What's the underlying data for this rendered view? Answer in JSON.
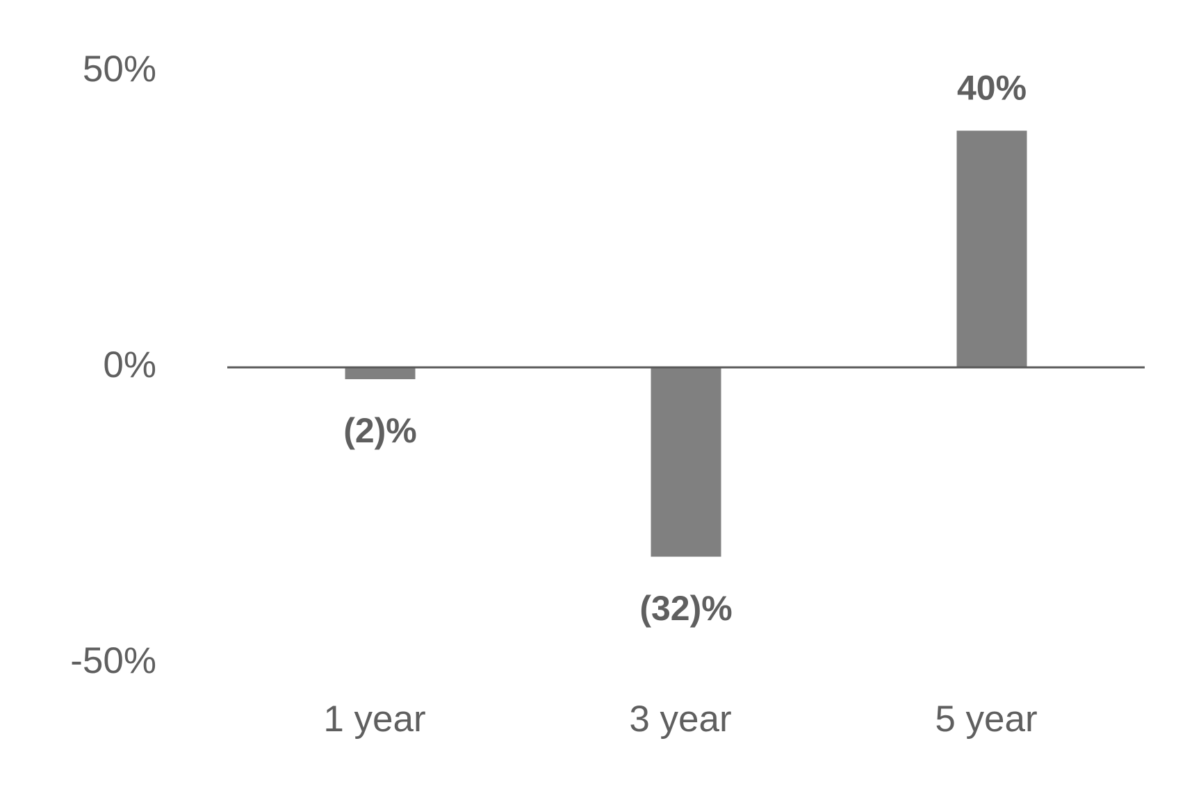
{
  "chart_data": {
    "type": "bar",
    "categories": [
      "1 year",
      "3 year",
      "5 year"
    ],
    "values": [
      -2,
      -32,
      40
    ],
    "value_labels": [
      "(2)%",
      "(32)%",
      "40%"
    ],
    "color": "#808080",
    "ylim": [
      -50,
      50
    ],
    "yticks": [
      {
        "value": 50,
        "label": "50%"
      },
      {
        "value": 0,
        "label": "0%"
      },
      {
        "value": -50,
        "label": "-50%"
      }
    ],
    "grid": false
  }
}
